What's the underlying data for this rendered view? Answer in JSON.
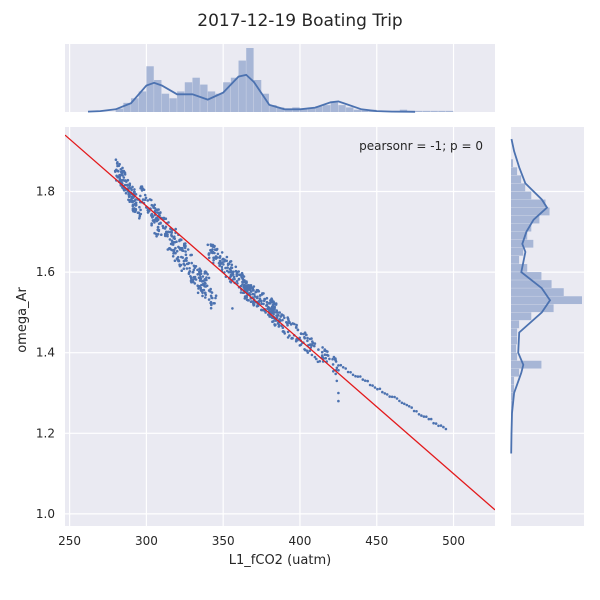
{
  "chart_data": {
    "type": "scatter",
    "title": "2017-12-19 Boating Trip",
    "xlabel": "L1_fCO2 (uatm)",
    "ylabel": "omega_Ar",
    "xlim": [
      247,
      527
    ],
    "ylim": [
      0.97,
      1.96
    ],
    "xticks": [
      250,
      300,
      350,
      400,
      450,
      500
    ],
    "yticks": [
      1.0,
      1.2,
      1.4,
      1.6,
      1.8
    ],
    "annotation": "pearsonr = -1; p = 0",
    "grid": true,
    "colors": {
      "points": "#4c72b0",
      "fit": "#e31a1c",
      "hist": "#a7b6d6",
      "kde": "#4c72b0",
      "panel": "#eaeaf2"
    },
    "fit_line": {
      "x": [
        247,
        527
      ],
      "y": [
        1.94,
        1.01
      ]
    },
    "scatter_clusters": [
      {
        "x": [
          280,
          296
        ],
        "y": [
          1.86,
          1.75
        ]
      },
      {
        "x": [
          296,
          340
        ],
        "y": [
          1.8,
          1.57
        ]
      },
      {
        "x": [
          300,
          345
        ],
        "y": [
          1.75,
          1.52
        ]
      },
      {
        "x": [
          340,
          370
        ],
        "y": [
          1.66,
          1.54
        ]
      },
      {
        "x": [
          362,
          385
        ],
        "y": [
          1.56,
          1.5
        ]
      },
      {
        "x": [
          380,
          425
        ],
        "y": [
          1.5,
          1.36
        ]
      }
    ],
    "scatter_tail": {
      "x": [
        425,
        495
      ],
      "y": [
        1.37,
        1.21
      ]
    },
    "scatter_extra": [
      {
        "x": 424,
        "y": 1.33
      },
      {
        "x": 425,
        "y": 1.3
      },
      {
        "x": 425,
        "y": 1.28
      },
      {
        "x": 356,
        "y": 1.51
      }
    ],
    "x_hist": {
      "edges": [
        260,
        265,
        270,
        275,
        280,
        285,
        290,
        295,
        300,
        305,
        310,
        315,
        320,
        325,
        330,
        335,
        340,
        345,
        350,
        355,
        360,
        365,
        370,
        375,
        380,
        385,
        390,
        395,
        400,
        405,
        410,
        415,
        420,
        425,
        430,
        435,
        440,
        445,
        450,
        455,
        460,
        465,
        470,
        475,
        480,
        485,
        490,
        495,
        500,
        505,
        510
      ],
      "counts": [
        0,
        0,
        0,
        0,
        3,
        8,
        12,
        18,
        40,
        28,
        16,
        12,
        18,
        26,
        30,
        24,
        18,
        16,
        26,
        30,
        45,
        56,
        28,
        16,
        6,
        4,
        3,
        4,
        3,
        4,
        5,
        6,
        9,
        6,
        4,
        2,
        2,
        2,
        1,
        1,
        1,
        2,
        1,
        1,
        1,
        1,
        1,
        1,
        0,
        0
      ]
    },
    "x_kde": {
      "x": [
        262,
        270,
        280,
        290,
        300,
        305,
        310,
        320,
        330,
        340,
        350,
        360,
        365,
        370,
        380,
        390,
        400,
        410,
        420,
        425,
        430,
        440,
        450,
        460,
        470,
        475
      ],
      "y": [
        0.5,
        1,
        3,
        10,
        30,
        33,
        30,
        20,
        20,
        14,
        22,
        40,
        42,
        34,
        8,
        3,
        3,
        5,
        11,
        12,
        9,
        3,
        1,
        0.5,
        0.3,
        0.2
      ]
    },
    "y_hist": {
      "edges": [
        1.2,
        1.22,
        1.24,
        1.26,
        1.28,
        1.3,
        1.32,
        1.34,
        1.36,
        1.38,
        1.4,
        1.42,
        1.44,
        1.46,
        1.48,
        1.5,
        1.52,
        1.54,
        1.56,
        1.58,
        1.6,
        1.62,
        1.64,
        1.66,
        1.68,
        1.7,
        1.72,
        1.74,
        1.76,
        1.78,
        1.8,
        1.82,
        1.84,
        1.86,
        1.88
      ],
      "counts": [
        1,
        1,
        1,
        2,
        2,
        3,
        3,
        8,
        30,
        6,
        5,
        6,
        6,
        8,
        20,
        42,
        70,
        52,
        40,
        30,
        16,
        8,
        12,
        22,
        16,
        20,
        28,
        38,
        34,
        20,
        14,
        10,
        6,
        2
      ]
    },
    "y_kde": {
      "y": [
        1.15,
        1.2,
        1.25,
        1.3,
        1.35,
        1.37,
        1.4,
        1.45,
        1.5,
        1.53,
        1.56,
        1.6,
        1.65,
        1.67,
        1.7,
        1.73,
        1.76,
        1.78,
        1.82,
        1.86,
        1.9,
        1.93
      ],
      "x": [
        0.2,
        0.5,
        1,
        3,
        10,
        12,
        7,
        8,
        30,
        38,
        30,
        10,
        14,
        11,
        15,
        22,
        35,
        30,
        14,
        8,
        3,
        0.5
      ]
    }
  }
}
